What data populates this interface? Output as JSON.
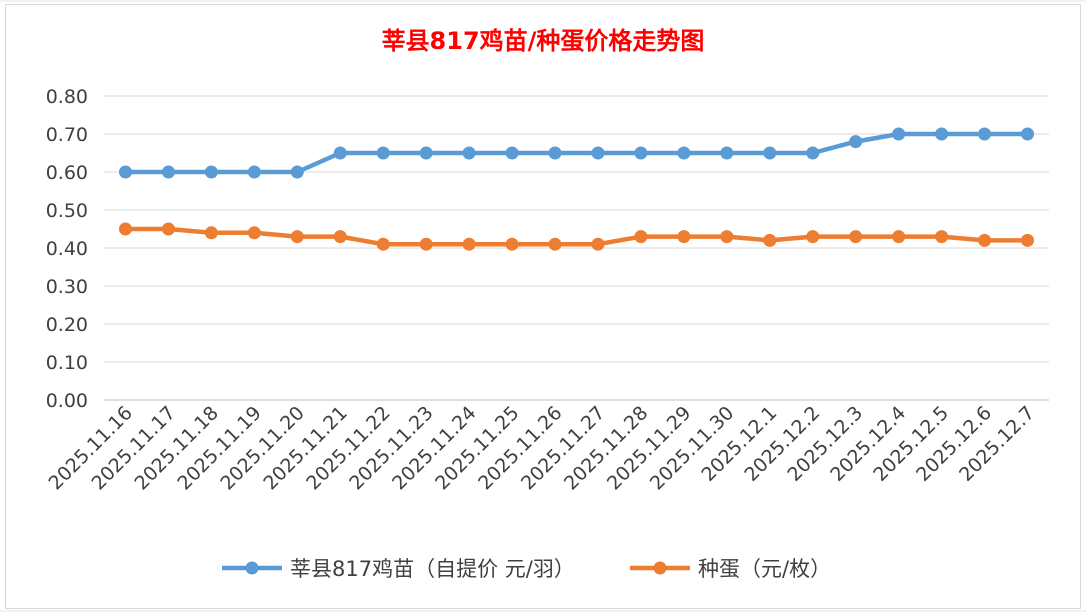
{
  "chart_data": {
    "type": "line",
    "title": "莘县817鸡苗/种蛋价格走势图",
    "title_color": "#ff0000",
    "categories": [
      "2025.11.16",
      "2025.11.17",
      "2025.11.18",
      "2025.11.19",
      "2025.11.20",
      "2025.11.21",
      "2025.11.22",
      "2025.11.23",
      "2025.11.24",
      "2025.11.25",
      "2025.11.26",
      "2025.11.27",
      "2025.11.28",
      "2025.11.29",
      "2025.11.30",
      "2025.12.1",
      "2025.12.2",
      "2025.12.3",
      "2025.12.4",
      "2025.12.5",
      "2025.12.6",
      "2025.12.7"
    ],
    "series": [
      {
        "name": "莘县817鸡苗（自提价 元/羽）",
        "color": "#5b9bd5",
        "values": [
          0.6,
          0.6,
          0.6,
          0.6,
          0.6,
          0.65,
          0.65,
          0.65,
          0.65,
          0.65,
          0.65,
          0.65,
          0.65,
          0.65,
          0.65,
          0.65,
          0.65,
          0.68,
          0.7,
          0.7,
          0.7,
          0.7
        ]
      },
      {
        "name": "种蛋（元/枚）",
        "color": "#ed7d31",
        "values": [
          0.45,
          0.45,
          0.44,
          0.44,
          0.43,
          0.43,
          0.41,
          0.41,
          0.41,
          0.41,
          0.41,
          0.41,
          0.43,
          0.43,
          0.43,
          0.42,
          0.43,
          0.43,
          0.43,
          0.43,
          0.42,
          0.42
        ]
      }
    ],
    "ylim": [
      0,
      0.8
    ],
    "yticks": [
      "0.00",
      "0.10",
      "0.20",
      "0.30",
      "0.40",
      "0.50",
      "0.60",
      "0.70",
      "0.80"
    ],
    "grid": true,
    "legend": "bottom"
  }
}
